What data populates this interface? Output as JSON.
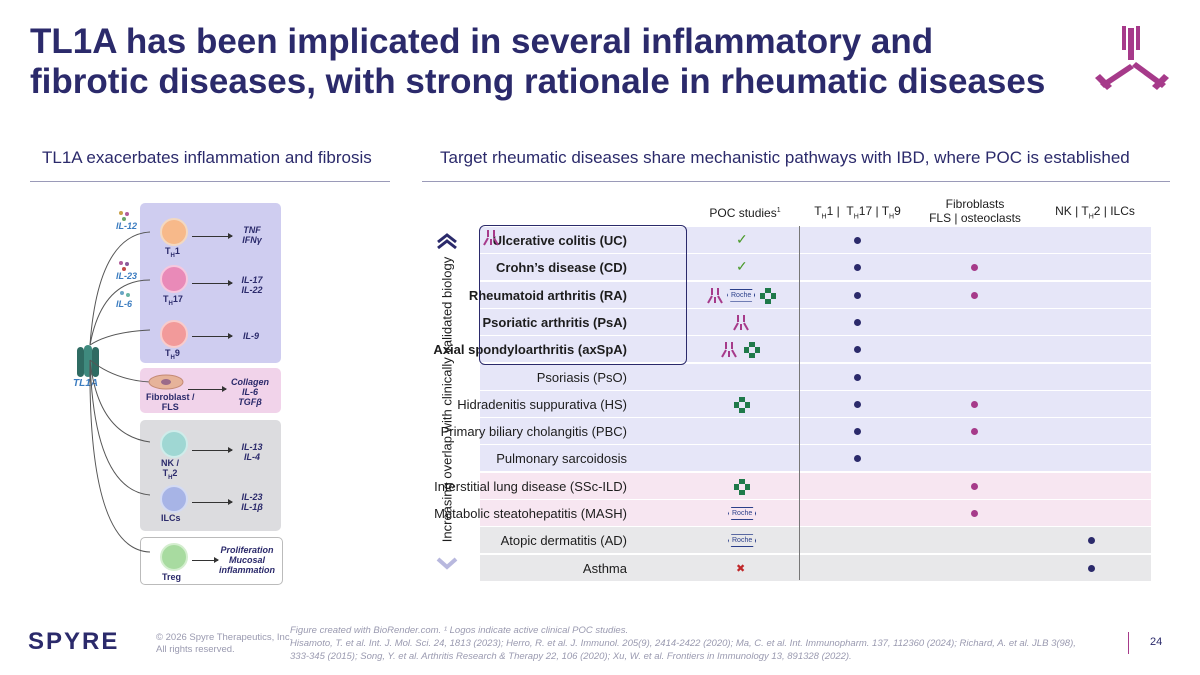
{
  "title": {
    "line1": "TL1A has been implicated in several inflammatory and",
    "line2": "fibrotic diseases, with strong rationale in rheumatic diseases"
  },
  "left_header": "TL1A exacerbates inflammation and fibrosis",
  "right_header": "Target rheumatic diseases share mechanistic pathways with IBD, where POC is established",
  "colors": {
    "navy": "#2b2a6b",
    "magenta": "#a63a8a",
    "dot_navy": "#2b2a6b",
    "dot_magenta": "#a63a8a"
  },
  "diagram": {
    "tl1a_label": "TL1A",
    "inputs": [
      "IL-12",
      "IL-23",
      "IL-6"
    ],
    "cells": [
      {
        "name": "T",
        "sub": "H",
        "suffix": "1",
        "cytokines": "TNF\nIFNγ"
      },
      {
        "name": "T",
        "sub": "H",
        "suffix": "17",
        "cytokines": "IL-17\nIL-22"
      },
      {
        "name": "T",
        "sub": "H",
        "suffix": "9",
        "cytokines": "IL-9"
      },
      {
        "name": "Fibroblast /\nFLS",
        "cytokines": "Collagen\nIL-6\nTGFβ"
      },
      {
        "name": "NK /\nT",
        "sub": "H",
        "suffix": "2",
        "cytokines": "IL-13\nIL-4"
      },
      {
        "name": "ILCs",
        "cytokines": "IL-23\nIL-1β"
      },
      {
        "name": "Treg",
        "cytokines": "Proliferation\nMucosal\ninflammation"
      }
    ]
  },
  "vertical_label": "Increasing overlap with clinically validated biology",
  "columns": [
    {
      "label": "POC studies",
      "sup": "1"
    },
    {
      "label": "T",
      "parts": "TH1 | TH17 | TH9"
    },
    {
      "label": "Fibroblasts\nFLS | osteoclasts"
    },
    {
      "label": "NK | TH2 | ILCs"
    }
  ],
  "rows": [
    {
      "disease": "Ulcerative colitis (UC)",
      "bold": true,
      "poc": "check",
      "th": true,
      "fib": false,
      "nk": false
    },
    {
      "disease": "Crohn’s disease (CD)",
      "bold": true,
      "poc": "check",
      "th": true,
      "fib": true,
      "nk": false
    },
    {
      "disease": "Rheumatoid arthritis (RA)",
      "bold": true,
      "poc": "logos-ab-roche-diamond",
      "th": true,
      "fib": true,
      "nk": false
    },
    {
      "disease": "Psoriatic arthritis (PsA)",
      "bold": true,
      "poc": "logo-ab",
      "th": true,
      "fib": false,
      "nk": false
    },
    {
      "disease": "Axial spondyloarthritis (axSpA)",
      "bold": true,
      "poc": "logos-ab-diamond",
      "th": true,
      "fib": false,
      "nk": false
    },
    {
      "disease": "Psoriasis (PsO)",
      "bold": false,
      "poc": "",
      "th": true,
      "fib": false,
      "nk": false
    },
    {
      "disease": "Hidradenitis suppurativa (HS)",
      "bold": false,
      "poc": "logo-diamond",
      "th": true,
      "fib": true,
      "nk": false
    },
    {
      "disease": "Primary biliary cholangitis (PBC)",
      "bold": false,
      "poc": "",
      "th": true,
      "fib": true,
      "nk": false
    },
    {
      "disease": "Pulmonary sarcoidosis",
      "bold": false,
      "poc": "",
      "th": true,
      "fib": false,
      "nk": false
    },
    {
      "disease": "Interstitial lung disease (SSc-ILD)",
      "bold": false,
      "poc": "logo-diamond",
      "th": false,
      "fib": true,
      "nk": false
    },
    {
      "disease": "Metabolic steatohepatitis (MASH)",
      "bold": false,
      "poc": "logo-roche",
      "th": false,
      "fib": true,
      "nk": false
    },
    {
      "disease": "Atopic dermatitis (AD)",
      "bold": false,
      "poc": "logo-roche",
      "th": false,
      "fib": false,
      "nk": true
    },
    {
      "disease": "Asthma",
      "bold": false,
      "poc": "cross",
      "th": false,
      "fib": false,
      "nk": true
    }
  ],
  "roche_text": "Roche",
  "footer": {
    "company": "SPYRE",
    "copyright": "© 2026 Spyre Therapeutics, Inc.",
    "rights": "All rights reserved.",
    "note1": "Figure created with BioRender.com. ¹ Logos indicate active clinical POC studies.",
    "note2": "Hisamoto, T. et al. Int. J. Mol. Sci. 24, 1813 (2023); Herro, R. et al. J. Immunol. 205(9), 2414-2422 (2020); Ma, C. et al. Int. Immunopharm. 137, 112360 (2024); Richard, A. et al. JLB 3(98),",
    "note3": "333-345 (2015); Song, Y. et al. Arthritis Research & Therapy 22, 106 (2020); Xu, W. et al. Frontiers in Immunology 13, 891328 (2022).",
    "page": "24"
  }
}
